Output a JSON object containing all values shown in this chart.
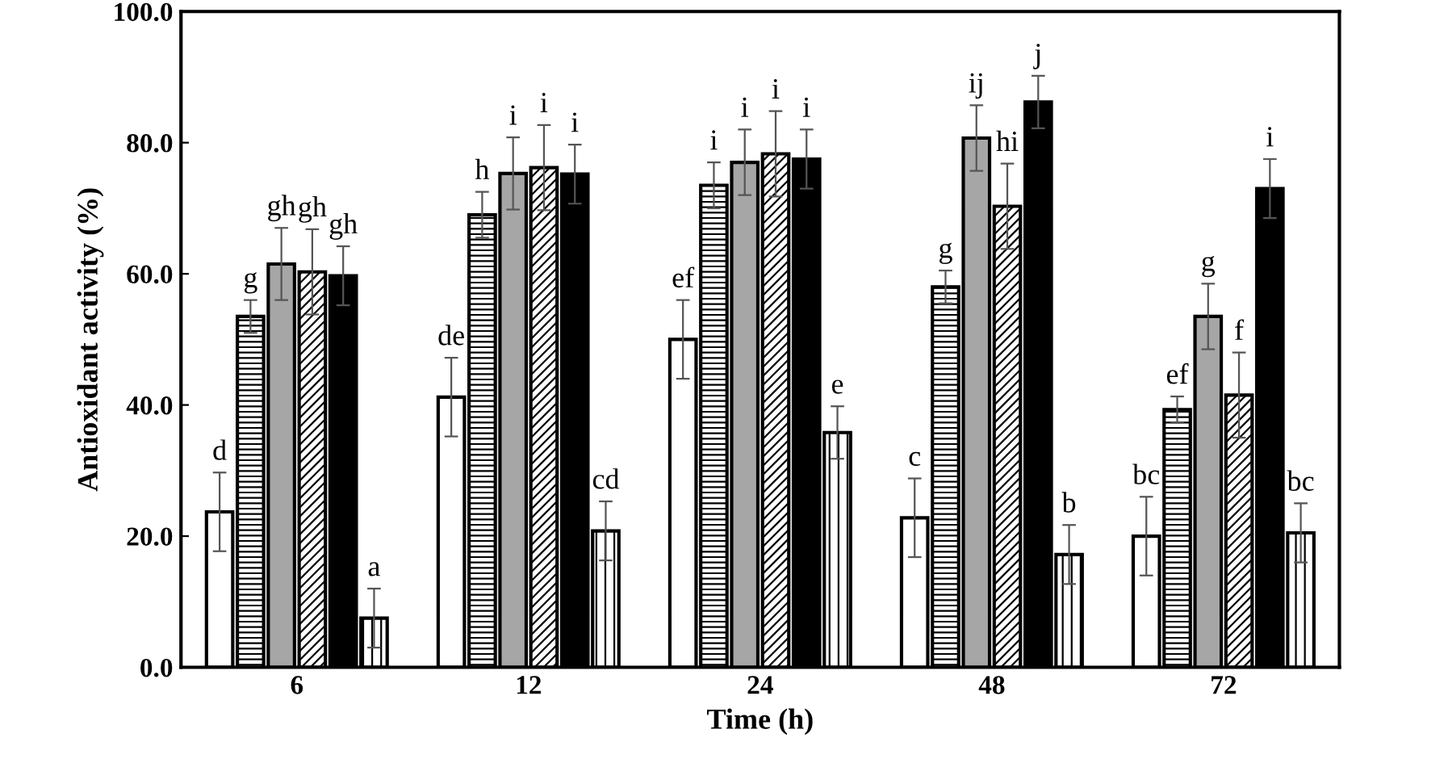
{
  "chart_data": {
    "type": "bar",
    "xlabel": "Time (h)",
    "ylabel": "Antioxidant activity (%)",
    "categories": [
      "6",
      "12",
      "24",
      "48",
      "72"
    ],
    "series": [
      {
        "color": "#ffffff",
        "values": [
          23.7,
          41.2,
          50.0,
          22.8,
          20.0
        ],
        "errors": [
          6,
          6,
          6,
          6,
          6
        ],
        "value_labels": [
          "d",
          "de",
          "ef",
          "c",
          "bc"
        ]
      },
      {
        "color": "#000000",
        "values": [
          53.5,
          69.0,
          73.5,
          58.0,
          39.3
        ],
        "errors": [
          2.5,
          3.5,
          3.5,
          2.5,
          2
        ],
        "value_labels": [
          "g",
          "h",
          "i",
          "g",
          "ef"
        ]
      },
      {
        "color": "#a6a6a6",
        "values": [
          61.5,
          75.3,
          77.0,
          80.7,
          53.5
        ],
        "errors": [
          5.5,
          5.5,
          5,
          5,
          5
        ],
        "value_labels": [
          "gh",
          "i",
          "i",
          "ij",
          "g"
        ]
      },
      {
        "color": "#000000",
        "values": [
          60.3,
          76.2,
          78.3,
          70.3,
          41.5
        ],
        "errors": [
          6.5,
          6.5,
          6.5,
          6.5,
          6.5
        ],
        "value_labels": [
          "gh",
          "i",
          "i",
          "hi",
          "f"
        ]
      },
      {
        "color": "#000000",
        "values": [
          59.7,
          75.2,
          77.5,
          86.2,
          73.0
        ],
        "errors": [
          4.5,
          4.5,
          4.5,
          4,
          4.5
        ],
        "value_labels": [
          "gh",
          "i",
          "i",
          "j",
          "i"
        ]
      },
      {
        "color": "#000000",
        "values": [
          7.5,
          20.8,
          35.8,
          17.2,
          20.5
        ],
        "errors": [
          4.5,
          4.5,
          4,
          4.5,
          4.5
        ],
        "value_labels": [
          "a",
          "cd",
          "e",
          "b",
          "bc"
        ]
      }
    ],
    "ylim": [
      0,
      100
    ],
    "yticks": [
      {
        "value": 0,
        "label": "0.0"
      },
      {
        "value": 20,
        "label": "20.0"
      },
      {
        "value": 40,
        "label": "40.0"
      },
      {
        "value": 60,
        "label": "60.0"
      },
      {
        "value": 80,
        "label": "80.0"
      },
      {
        "value": 100,
        "label": "100.0"
      }
    ],
    "grid": false,
    "legend": false
  }
}
